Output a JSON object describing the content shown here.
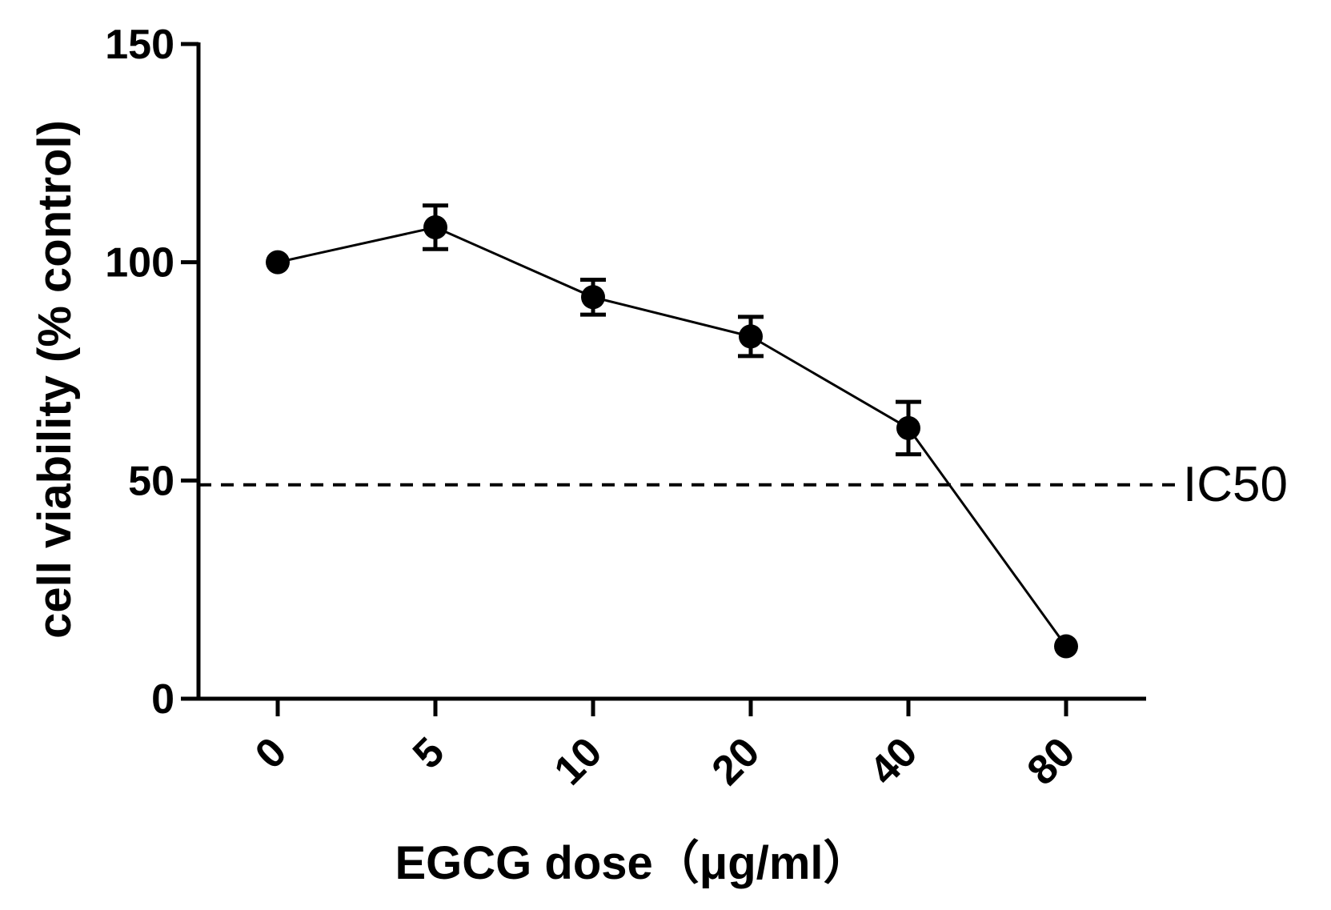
{
  "chart_data": {
    "type": "line",
    "title": "",
    "xlabel": "EGCG dose（μg/ml）",
    "ylabel": "cell viability (% control)",
    "categories": [
      "0",
      "5",
      "10",
      "20",
      "40",
      "80"
    ],
    "series": [
      {
        "name": "cell viability",
        "values": [
          100,
          108,
          92,
          83,
          62,
          12
        ],
        "errors": [
          0,
          5,
          4,
          4.5,
          6,
          0
        ]
      }
    ],
    "ylim": [
      0,
      150
    ],
    "yticks": [
      0,
      50,
      100,
      150
    ],
    "reference_line": {
      "label": "IC50",
      "value": 49,
      "style": "dashed"
    },
    "grid": false,
    "legend": "none"
  }
}
